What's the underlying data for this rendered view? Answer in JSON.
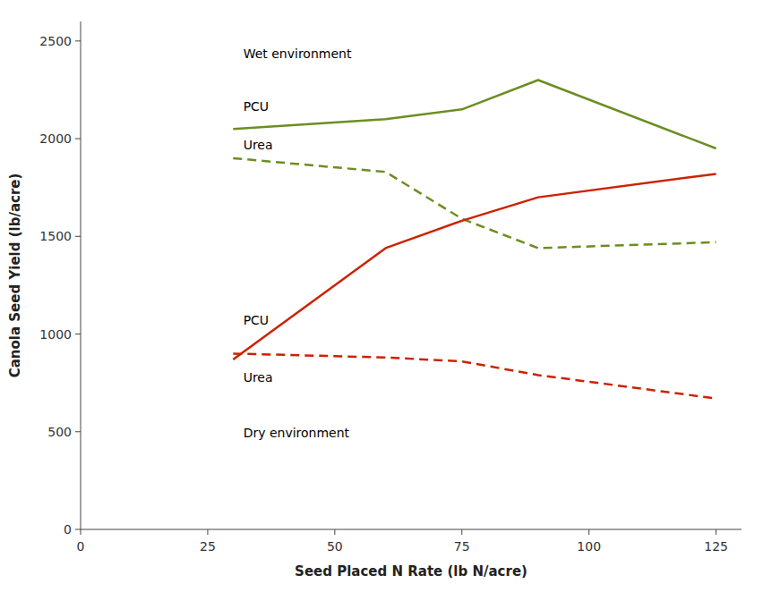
{
  "chart_data": {
    "type": "line",
    "x_label": "Seed Placed N Rate (lb N/acre)",
    "y_label": "Canola Seed Yield (lb/acre)",
    "x": [
      30,
      60,
      75,
      90,
      125
    ],
    "series": [
      {
        "color": "#6b8e23",
        "line_style": "solid",
        "values": [
          2050,
          2100,
          2150,
          2300,
          1950
        ]
      },
      {
        "color": "#6b8e23",
        "line_style": "dashed",
        "values": [
          1900,
          1830,
          1590,
          1440,
          1470
        ]
      },
      {
        "color": "#cc2200",
        "line_style": "solid",
        "values": [
          870,
          1440,
          1580,
          1700,
          1820
        ]
      },
      {
        "color": "#cc2200",
        "line_style": "dashed",
        "values": [
          900,
          880,
          860,
          790,
          670
        ]
      }
    ],
    "xlim": [
      0,
      130
    ],
    "ylim": [
      0,
      2600
    ],
    "xticks": [
      0,
      25,
      50,
      75,
      100,
      125
    ],
    "yticks": [
      0,
      500,
      1000,
      1500,
      2000,
      2500
    ],
    "grid": false,
    "annotations": [
      {
        "text": "Wet environment",
        "x": 32,
        "y": 2430
      },
      {
        "text": "PCU",
        "x": 32,
        "y": 2160
      },
      {
        "text": "Urea",
        "x": 32,
        "y": 1965
      },
      {
        "text": "PCU",
        "x": 32,
        "y": 1065
      },
      {
        "text": "Urea",
        "x": 32,
        "y": 775
      },
      {
        "text": "Dry environment",
        "x": 32,
        "y": 490
      }
    ]
  }
}
